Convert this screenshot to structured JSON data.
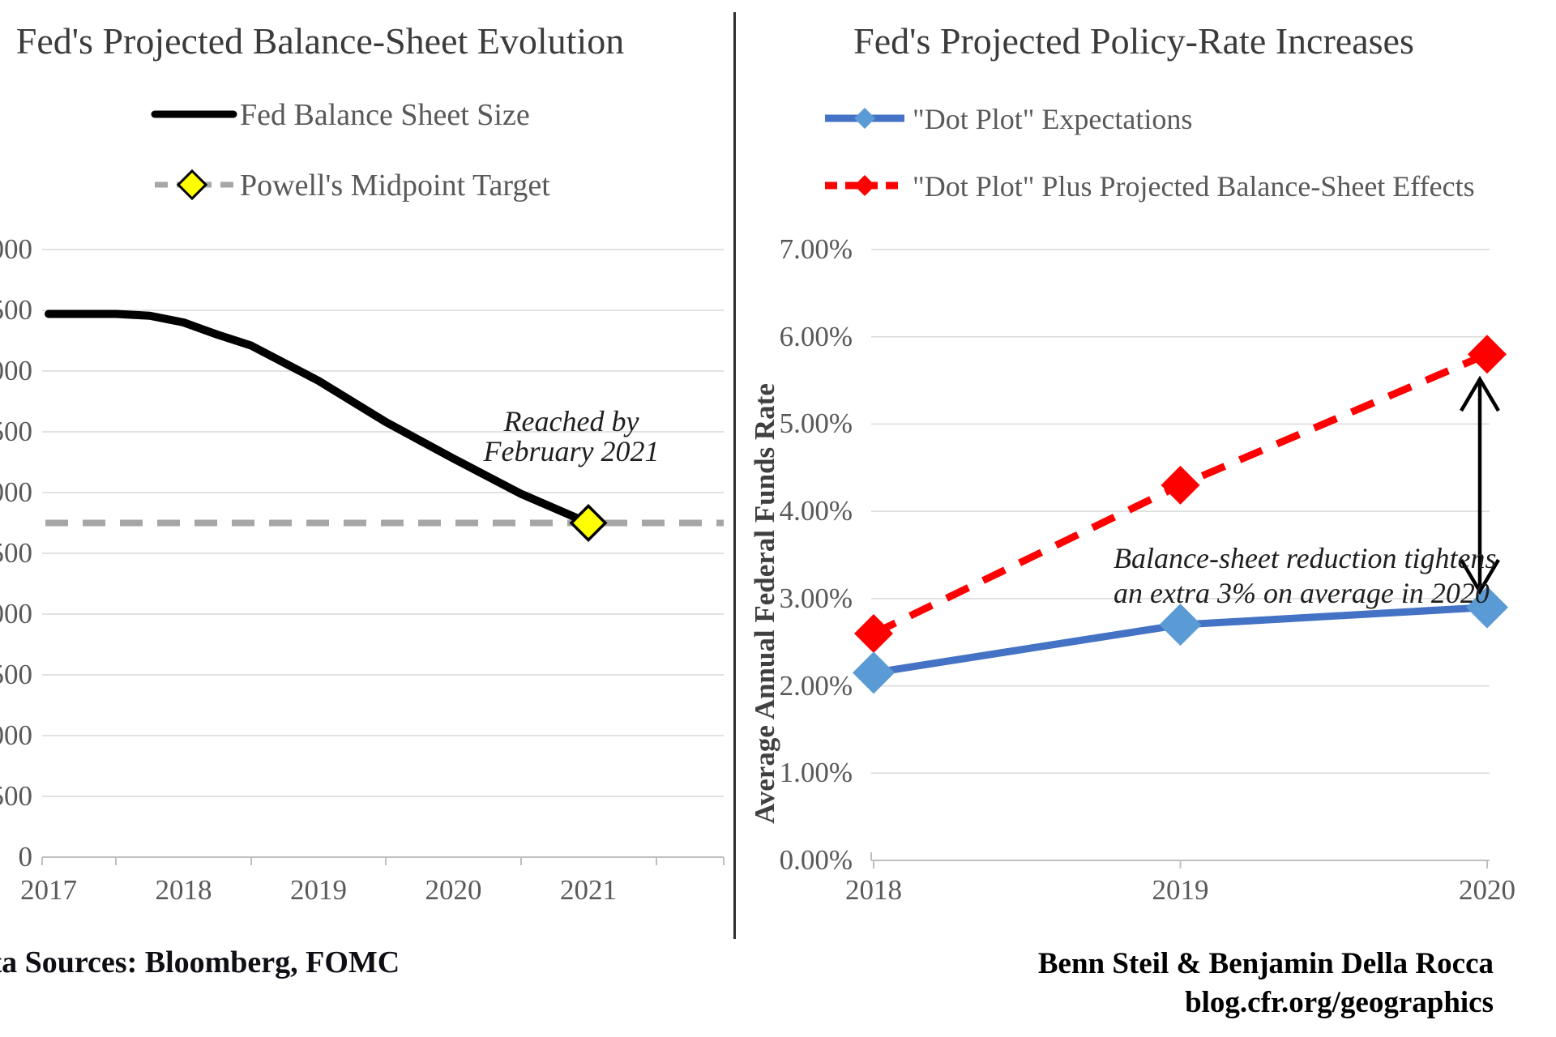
{
  "colors": {
    "title": "#3b3b3b",
    "label": "#595959",
    "grid": "#d9d9d9",
    "axis": "#bfbfbf",
    "balance_line": "#000000",
    "target_line": "#a6a6a6",
    "target_marker": "#ffff00",
    "dot_plot_line": "#4472c4",
    "dot_plot_marker": "#5b9bd5",
    "effects_line": "#ff0000",
    "arrow": "#000000",
    "divider": "#2e2e2e"
  },
  "left_chart": {
    "title": "Fed's Projected Balance-Sheet Evolution",
    "legend": {
      "series1": "Fed Balance Sheet Size",
      "series2": "Powell's Midpoint Target"
    },
    "annotation_line1": "Reached by",
    "annotation_line2": "February 2021"
  },
  "right_chart": {
    "title": "Fed's Projected Policy-Rate Increases",
    "y_axis_title": "Average Annual Federal Funds Rate",
    "legend": {
      "series1": "\"Dot Plot\" Expectations",
      "series2": "\"Dot Plot\" Plus Projected Balance-Sheet Effects"
    },
    "annotation_line1": "Balance-sheet reduction tightens",
    "annotation_line2": "an extra 3% on average in 2020"
  },
  "footer": {
    "sources": "Data Sources: Bloomberg, FOMC",
    "credit_line1": "Benn Steil & Benjamin Della Rocca",
    "credit_line2": "blog.cfr.org/geographics"
  },
  "chart_data": [
    {
      "type": "line",
      "title": "Fed's Projected Balance-Sheet Evolution",
      "x": [
        2017,
        2017.5,
        2017.75,
        2018,
        2018.25,
        2018.5,
        2019,
        2019.5,
        2020,
        2020.5,
        2021
      ],
      "series": [
        {
          "name": "Fed Balance Sheet Size",
          "values": [
            4470,
            4470,
            4455,
            4400,
            4300,
            4210,
            3920,
            3580,
            3280,
            2990,
            2750
          ],
          "style": "solid-black-thick"
        },
        {
          "name": "Powell's Midpoint Target",
          "value": 2750,
          "marker_year": 2021,
          "style": "dashed-gray-horizontal-with-yellow-diamond"
        }
      ],
      "x_tick_labels": [
        "2017",
        "2018",
        "2019",
        "2020",
        "2021"
      ],
      "ylim": [
        0,
        5000
      ],
      "y_tick_step": 500,
      "y_tick_note": "y-axis labels cropped by image left edge; only trailing \"00\" digits (and bottom \"0\") visible",
      "annotation": "Reached by February 2021",
      "grid": true,
      "legend_position": "top-center"
    },
    {
      "type": "line",
      "title": "Fed's Projected Policy-Rate Increases",
      "categories": [
        "2018",
        "2019",
        "2020"
      ],
      "series": [
        {
          "name": "\"Dot Plot\" Expectations",
          "values": [
            2.15,
            2.7,
            2.9
          ],
          "style": "solid-blue-diamond-markers"
        },
        {
          "name": "\"Dot Plot\" Plus Projected Balance-Sheet Effects",
          "values": [
            2.6,
            4.3,
            5.8
          ],
          "style": "dashed-red-diamond-markers"
        }
      ],
      "ylabel": "Average Annual Federal Funds Rate",
      "ylim": [
        0,
        7
      ],
      "y_tick_step": 1,
      "y_tick_format": "0.00%",
      "annotation": "Balance-sheet reduction tightens an extra 3% on average in 2020",
      "annotation_arrow": "double-headed vertical arrow at 2020 between 2.9% and 5.8%",
      "grid": true,
      "legend_position": "top-left"
    }
  ]
}
